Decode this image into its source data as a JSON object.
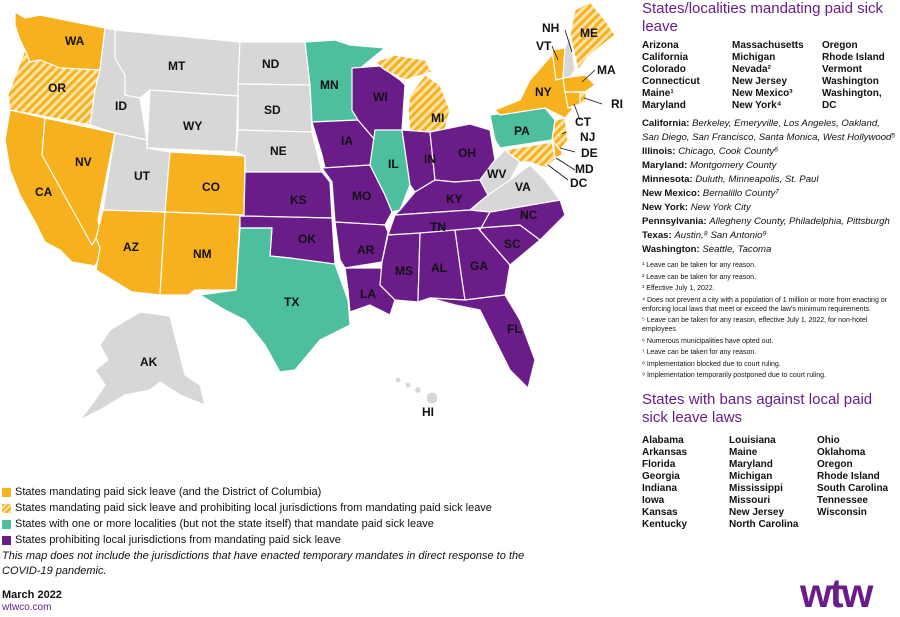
{
  "colors": {
    "mandate": "#f7b11e",
    "mandate_and_prohibit": "#f7b11e-hatched",
    "local_only": "#4dbf9f",
    "prohibit": "#6a1d88",
    "none": "#d7d7d7",
    "accent": "#6a1d88"
  },
  "map": {
    "labels": {
      "WA": "WA",
      "OR": "OR",
      "CA": "CA",
      "NV": "NV",
      "ID": "ID",
      "MT": "MT",
      "WY": "WY",
      "UT": "UT",
      "AZ": "AZ",
      "CO": "CO",
      "NM": "NM",
      "ND": "ND",
      "SD": "SD",
      "NE": "NE",
      "KS": "KS",
      "OK": "OK",
      "TX": "TX",
      "MN": "MN",
      "IA": "IA",
      "MO": "MO",
      "AR": "AR",
      "LA": "LA",
      "WI": "WI",
      "IL": "IL",
      "MI": "MI",
      "IN": "IN",
      "OH": "OH",
      "KY": "KY",
      "TN": "TN",
      "MS": "MS",
      "AL": "AL",
      "GA": "GA",
      "FL": "FL",
      "SC": "SC",
      "NC": "NC",
      "VA": "VA",
      "WV": "WV",
      "PA": "PA",
      "NY": "NY",
      "VT": "VT",
      "NH": "NH",
      "ME": "ME",
      "MA": "MA",
      "RI": "RI",
      "CT": "CT",
      "NJ": "NJ",
      "DE": "DE",
      "MD": "MD",
      "DC": "DC",
      "AK": "AK",
      "HI": "HI"
    }
  },
  "legend": [
    {
      "label": "States mandating paid sick leave (and the District of Columbia)",
      "icon": "orange-swatch"
    },
    {
      "label": "States mandating paid sick leave and prohibiting local jurisdictions from mandating paid sick leave",
      "icon": "hatched-swatch"
    },
    {
      "label": "States with one or more localities (but not the state itself) that mandate paid sick leave",
      "icon": "teal-swatch"
    },
    {
      "label": "States prohibiting local jurisdictions from mandating paid sick leave",
      "icon": "purple-swatch"
    }
  ],
  "disclaimer": "This map does not include the jurisdictions that have enacted temporary mandates in direct response to the COVID-19 pandemic.",
  "footer": {
    "date": "March 2022",
    "site": "wtwco.com",
    "logo": "wtw"
  },
  "mandating": {
    "title": "States/localities mandating paid sick leave",
    "col1": [
      "Arizona",
      "California",
      "Colorado",
      "Connecticut",
      "Maine¹",
      "Maryland"
    ],
    "col2": [
      "Massachusetts",
      "Michigan",
      "Nevada²",
      "New Jersey",
      "New Mexico³",
      "New York⁴"
    ],
    "col3": [
      "Oregon",
      "Rhode Island",
      "Vermont",
      "Washington",
      "Washington, DC"
    ]
  },
  "localities": [
    {
      "state": "California:",
      "places": "Berkeley, Emeryville, Los Angeles, Oakland, San Diego, San Francisco, Santa Monica, West Hollywood⁵"
    },
    {
      "state": "Illinois:",
      "places": "Chicago, Cook County⁶"
    },
    {
      "state": "Maryland:",
      "places": "Montgomery County"
    },
    {
      "state": "Minnesota:",
      "places": "Duluth, Minneapolis, St. Paul"
    },
    {
      "state": "New Mexico:",
      "places": "Bernalillo County⁷"
    },
    {
      "state": "New York:",
      "places": "New York City"
    },
    {
      "state": "Pennsylvania:",
      "places": "Allegheny County, Philadelphia, Pittsburgh"
    },
    {
      "state": "Texas:",
      "places": "Austin,⁸ San Antonio⁹"
    },
    {
      "state": "Washington:",
      "places": "Seattle, Tacoma"
    }
  ],
  "footnotes": [
    "¹ Leave can be taken for any reason.",
    "² Leave can be taken for any reason.",
    "³ Effective July 1, 2022.",
    "⁴ Does not prevent a city with a population of 1 million or more from enacting or enforcing local laws that meet or exceed the law's minimum requirements.",
    "⁵ Leave can be taken for any reason, effective July 1, 2022, for non-hotel employees",
    "⁶ Numerous municipalities have opted out.",
    "⁷ Leave can be taken for any reason.",
    "⁸ Implementation blocked due to court ruling.",
    "⁹ Implementation temporarily postponed due to court ruling."
  ],
  "bans": {
    "title": "States with bans against local paid sick leave laws",
    "col1": [
      "Alabama",
      "Arkansas",
      "Florida",
      "Georgia",
      "Indiana",
      "Iowa",
      "Kansas",
      "Kentucky"
    ],
    "col2": [
      "Louisiana",
      "Maine",
      "Maryland",
      "Michigan",
      "Mississippi",
      "Missouri",
      "New Jersey",
      "North Carolina"
    ],
    "col3": [
      "Ohio",
      "Oklahoma",
      "Oregon",
      "Rhode Island",
      "South Carolina",
      "Tennessee",
      "Wisconsin"
    ]
  }
}
